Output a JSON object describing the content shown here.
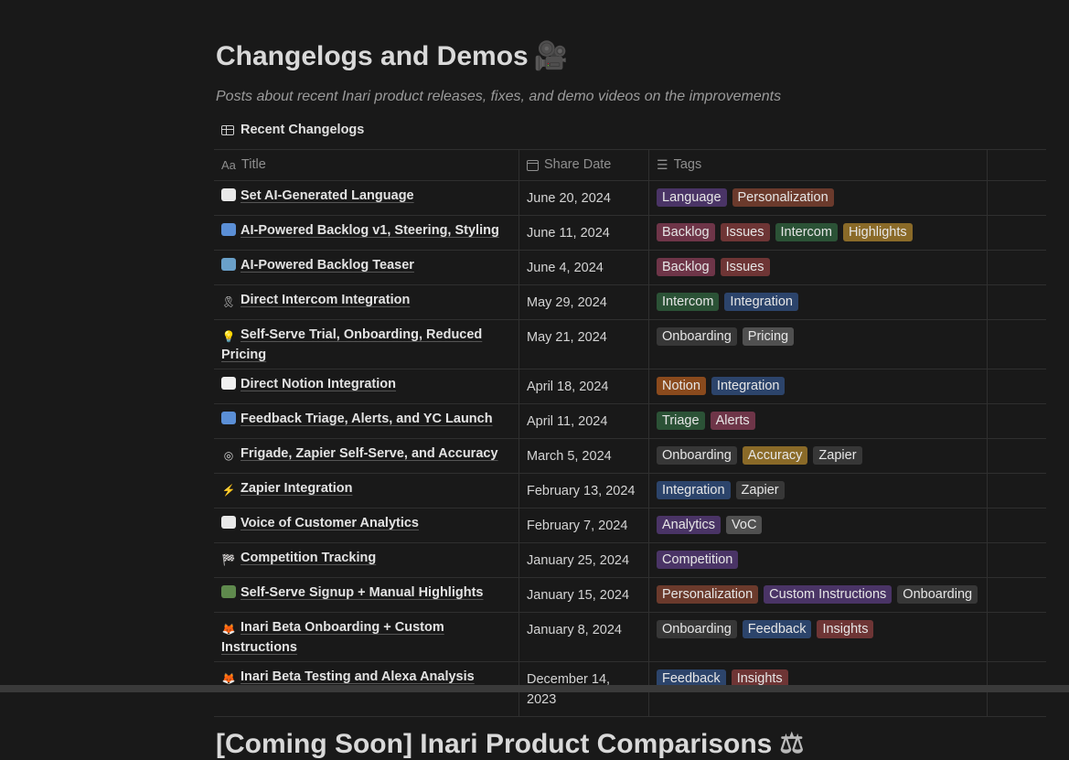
{
  "page": {
    "title": "Changelogs and Demos",
    "title_icon": "movie-camera-icon",
    "subtitle": "Posts about recent Inari product releases, fixes, and demo videos on the improvements"
  },
  "database": {
    "title": "Recent Changelogs",
    "columns": {
      "title": "Title",
      "share_date": "Share Date",
      "tags": "Tags"
    }
  },
  "tag_colors": {
    "Language": "#4a3466",
    "Personalization": "#6b3a2c",
    "Backlog": "#6e3548",
    "Issues": "#6e3535",
    "Intercom": "#2b5236",
    "Highlights": "#8a6a28",
    "Integration": "#2c446b",
    "Onboarding": "#373737",
    "Pricing": "#505050",
    "Notion": "#8a4a1d",
    "Triage": "#2b5236",
    "Alerts": "#6e3548",
    "Accuracy": "#8a6a28",
    "Zapier": "#373737",
    "Analytics": "#4a3466",
    "VoC": "#505050",
    "Competition": "#4a3466",
    "Custom Instructions": "#4a3466",
    "Feedback": "#2c446b",
    "Insights": "#6e3535"
  },
  "rows": [
    {
      "icon": "flag-icon",
      "icon_color": "#e8e8e8",
      "icon_glyph": "",
      "title": "Set AI-Generated Language",
      "date": "June 20, 2024",
      "tags": [
        "Language",
        "Personalization"
      ]
    },
    {
      "icon": "map-icon",
      "icon_color": "#5b8fd6",
      "icon_glyph": "",
      "title": "AI-Powered Backlog v1, Steering, Styling",
      "date": "June 11, 2024",
      "tags": [
        "Backlog",
        "Issues",
        "Intercom",
        "Highlights"
      ]
    },
    {
      "icon": "world-map-icon",
      "icon_color": "#6aa0c9",
      "icon_glyph": "",
      "title": "AI-Powered Backlog Teaser",
      "date": "June 4, 2024",
      "tags": [
        "Backlog",
        "Issues"
      ]
    },
    {
      "icon": "ribbon-icon",
      "icon_color": "transparent",
      "icon_glyph": "🎗",
      "title": "Direct Intercom Integration",
      "date": "May 29, 2024",
      "tags": [
        "Intercom",
        "Integration"
      ]
    },
    {
      "icon": "lightbulb-icon",
      "icon_color": "transparent",
      "icon_glyph": "💡",
      "title": "Self-Serve Trial, Onboarding, Reduced Pricing",
      "date": "May 21, 2024",
      "tags": [
        "Onboarding",
        "Pricing"
      ]
    },
    {
      "icon": "notion-icon",
      "icon_color": "#f0f0f0",
      "icon_glyph": "",
      "title": "Direct Notion Integration",
      "date": "April 18, 2024",
      "tags": [
        "Notion",
        "Integration"
      ]
    },
    {
      "icon": "return-arrow-icon",
      "icon_color": "#5b8fd6",
      "icon_glyph": "",
      "title": "Feedback Triage, Alerts, and YC Launch",
      "date": "April 11, 2024",
      "tags": [
        "Triage",
        "Alerts"
      ]
    },
    {
      "icon": "target-icon",
      "icon_color": "transparent",
      "icon_glyph": "◎",
      "title": "Frigade, Zapier Self-Serve, and Accuracy",
      "date": "March 5, 2024",
      "tags": [
        "Onboarding",
        "Accuracy",
        "Zapier"
      ]
    },
    {
      "icon": "lightning-icon",
      "icon_color": "transparent",
      "icon_glyph": "⚡",
      "title": "Zapier Integration",
      "date": "February 13, 2024",
      "tags": [
        "Integration",
        "Zapier"
      ]
    },
    {
      "icon": "bar-chart-icon",
      "icon_color": "#e8e8e8",
      "icon_glyph": "",
      "title": "Voice of Customer Analytics",
      "date": "February 7, 2024",
      "tags": [
        "Analytics",
        "VoC"
      ]
    },
    {
      "icon": "checkered-flag-icon",
      "icon_color": "transparent",
      "icon_glyph": "🏁",
      "title": "Competition Tracking",
      "date": "January 25, 2024",
      "tags": [
        "Competition"
      ]
    },
    {
      "icon": "road-icon",
      "icon_color": "#5f8a4d",
      "icon_glyph": "",
      "title": "Self-Serve Signup + Manual Highlights",
      "date": "January 15, 2024",
      "tags": [
        "Personalization",
        "Custom Instructions",
        "Onboarding"
      ]
    },
    {
      "icon": "fox-icon",
      "icon_color": "transparent",
      "icon_glyph": "🦊",
      "title": "Inari Beta Onboarding + Custom Instructions",
      "date": "January 8, 2024",
      "tags": [
        "Onboarding",
        "Feedback",
        "Insights"
      ]
    },
    {
      "icon": "fox-icon",
      "icon_color": "transparent",
      "icon_glyph": "🦊",
      "title": "Inari Beta Testing and Alexa Analysis",
      "date": "December 14, 2023",
      "tags": [
        "Feedback",
        "Insights"
      ]
    }
  ],
  "next_section": {
    "title": "[Coming Soon] Inari Product Comparisons",
    "title_icon": "balance-scale-icon"
  }
}
